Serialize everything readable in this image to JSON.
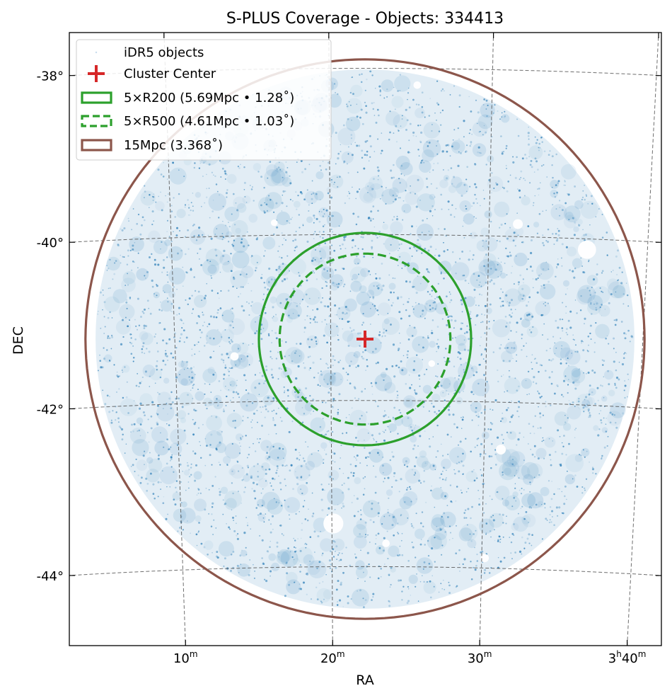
{
  "chart_data": {
    "type": "scatter",
    "title": "S-PLUS Coverage - Objects: 334413",
    "xlabel": "RA",
    "ylabel": "DEC",
    "projection": "sky (tangent plane)",
    "ra_range_min": [
      44.0,
      0.0
    ],
    "dec_range_deg": [
      -44.8,
      -37.6
    ],
    "dec_gridlines_deg": [
      -38,
      -40,
      -42,
      -44
    ],
    "dec_tick_labels": [
      "-38°",
      "-40°",
      "-42°",
      "-44°"
    ],
    "ra_gridlines_min": [
      40,
      30,
      20,
      10
    ],
    "ra_tick_labels": [
      {
        "h": "3",
        "m": "40"
      },
      {
        "h": "",
        "m": "30"
      },
      {
        "h": "",
        "m": "20"
      },
      {
        "h": "",
        "m": "10"
      }
    ],
    "grid": true,
    "legend_position": "top-left",
    "center": {
      "ra_min": 22.2,
      "dec_deg": -41.26
    },
    "coverage_radius_deg": 3.25,
    "series": [
      {
        "name": "iDR5 objects",
        "kind": "points",
        "color": "#1f77b4",
        "count": 334413
      },
      {
        "name": "Cluster Center",
        "kind": "marker",
        "marker": "plus",
        "color": "#d62728"
      },
      {
        "name": "5×R200 (5.69Mpc • 1.28$^\\circ$)",
        "display": "5×R200 (5.69Mpc • 1.28˚)",
        "kind": "circle",
        "radius_deg": 1.28,
        "color": "#2ca02c",
        "linestyle": "solid"
      },
      {
        "name": "5×R500 (4.61Mpc • 1.03$^\\circ$)",
        "display": "5×R500 (4.61Mpc • 1.03˚)",
        "kind": "circle",
        "radius_deg": 1.03,
        "color": "#2ca02c",
        "linestyle": "dashed"
      },
      {
        "name": "15Mpc (3.368$^\\circ$)",
        "display": "15Mpc (3.368˚)",
        "kind": "circle",
        "radius_deg": 3.368,
        "color": "#8c564b",
        "linestyle": "solid"
      }
    ],
    "masked_holes": [
      {
        "ra_min": 36.2,
        "dec_deg": -40.13,
        "r_deg": 0.11
      },
      {
        "ra_min": 31.8,
        "dec_deg": -39.85,
        "r_deg": 0.06
      },
      {
        "ra_min": 20.1,
        "dec_deg": -43.48,
        "r_deg": 0.12
      },
      {
        "ra_min": 31.1,
        "dec_deg": -42.57,
        "r_deg": 0.06
      },
      {
        "ra_min": 30.2,
        "dec_deg": -43.88,
        "r_deg": 0.05
      },
      {
        "ra_min": 23.6,
        "dec_deg": -43.72,
        "r_deg": 0.045
      },
      {
        "ra_min": 16.5,
        "dec_deg": -39.85,
        "r_deg": 0.04
      },
      {
        "ra_min": 13.8,
        "dec_deg": -41.45,
        "r_deg": 0.05
      },
      {
        "ra_min": 12.9,
        "dec_deg": -38.55,
        "r_deg": 0.045
      },
      {
        "ra_min": 10.2,
        "dec_deg": -38.75,
        "r_deg": 0.04
      },
      {
        "ra_min": 26.5,
        "dec_deg": -41.55,
        "r_deg": 0.04
      },
      {
        "ra_min": 25.4,
        "dec_deg": -38.2,
        "r_deg": 0.045
      }
    ]
  }
}
